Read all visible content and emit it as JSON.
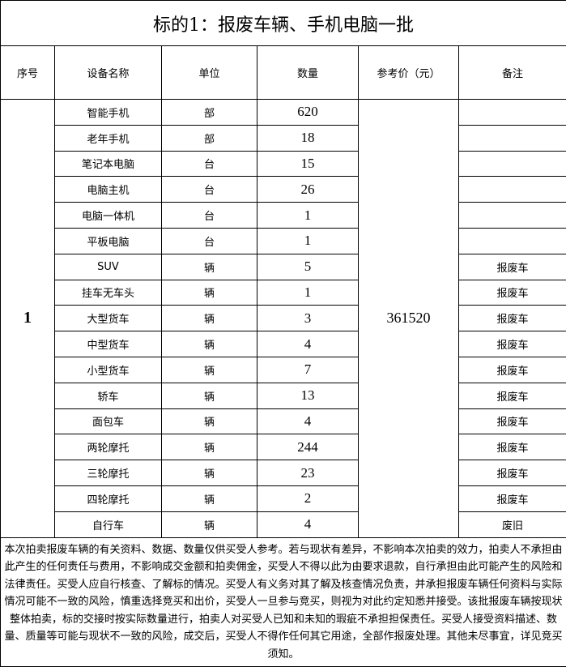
{
  "title": "标的1：报废车辆、手机电脑一批",
  "headers": [
    "序号",
    "设备名称",
    "单位",
    "数量",
    "参考价（元）",
    "备注"
  ],
  "serial": "1",
  "price": "361520",
  "rows": [
    {
      "name": "智能手机",
      "unit": "部",
      "qty": "620",
      "note": ""
    },
    {
      "name": "老年手机",
      "unit": "部",
      "qty": "18",
      "note": ""
    },
    {
      "name": "笔记本电脑",
      "unit": "台",
      "qty": "15",
      "note": ""
    },
    {
      "name": "电脑主机",
      "unit": "台",
      "qty": "26",
      "note": ""
    },
    {
      "name": "电脑一体机",
      "unit": "台",
      "qty": "1",
      "note": ""
    },
    {
      "name": "平板电脑",
      "unit": "台",
      "qty": "1",
      "note": ""
    },
    {
      "name": "SUV",
      "unit": "辆",
      "qty": "5",
      "note": "报废车"
    },
    {
      "name": "挂车无车头",
      "unit": "辆",
      "qty": "1",
      "note": "报废车"
    },
    {
      "name": "大型货车",
      "unit": "辆",
      "qty": "3",
      "note": "报废车"
    },
    {
      "name": "中型货车",
      "unit": "辆",
      "qty": "4",
      "note": "报废车"
    },
    {
      "name": "小型货车",
      "unit": "辆",
      "qty": "7",
      "note": "报废车"
    },
    {
      "name": "轿车",
      "unit": "辆",
      "qty": "13",
      "note": "报废车"
    },
    {
      "name": "面包车",
      "unit": "辆",
      "qty": "4",
      "note": "报废车"
    },
    {
      "name": "两轮摩托",
      "unit": "辆",
      "qty": "244",
      "note": "报废车"
    },
    {
      "name": "三轮摩托",
      "unit": "辆",
      "qty": "23",
      "note": "报废车"
    },
    {
      "name": "四轮摩托",
      "unit": "辆",
      "qty": "2",
      "note": "报废车"
    },
    {
      "name": "自行车",
      "unit": "辆",
      "qty": "4",
      "note": "废旧"
    }
  ],
  "footer": "本次拍卖报废车辆的有关资料、数据、数量仅供买受人参考。若与现状有差异，不影响本次拍卖的效力，拍卖人不承担由此产生的任何责任与费用，不影响成交金额和拍卖佣金，买受人不得以此为由要求退款，自行承担由此可能产生的风险和法律责任。买受人应自行核查、了解标的情况。买受人有义务对其了解及核查情况负责，并承担报废车辆任何资料与实际情况可能不一致的风险，慎重选择竞买和出价，买受人一旦参与竞买，则视为对此约定知悉并接受。该批报废车辆按现状整体拍卖，标的交接时按实际数量进行，拍卖人对买受人已知和未知的瑕疵不承担担保责任。买受人接受资料描述、数量、质量等可能与现状不一致的风险，成交后，买受人不得作任何其它用途，全部作报废处理。其他未尽事宜，详见竞买须知。"
}
